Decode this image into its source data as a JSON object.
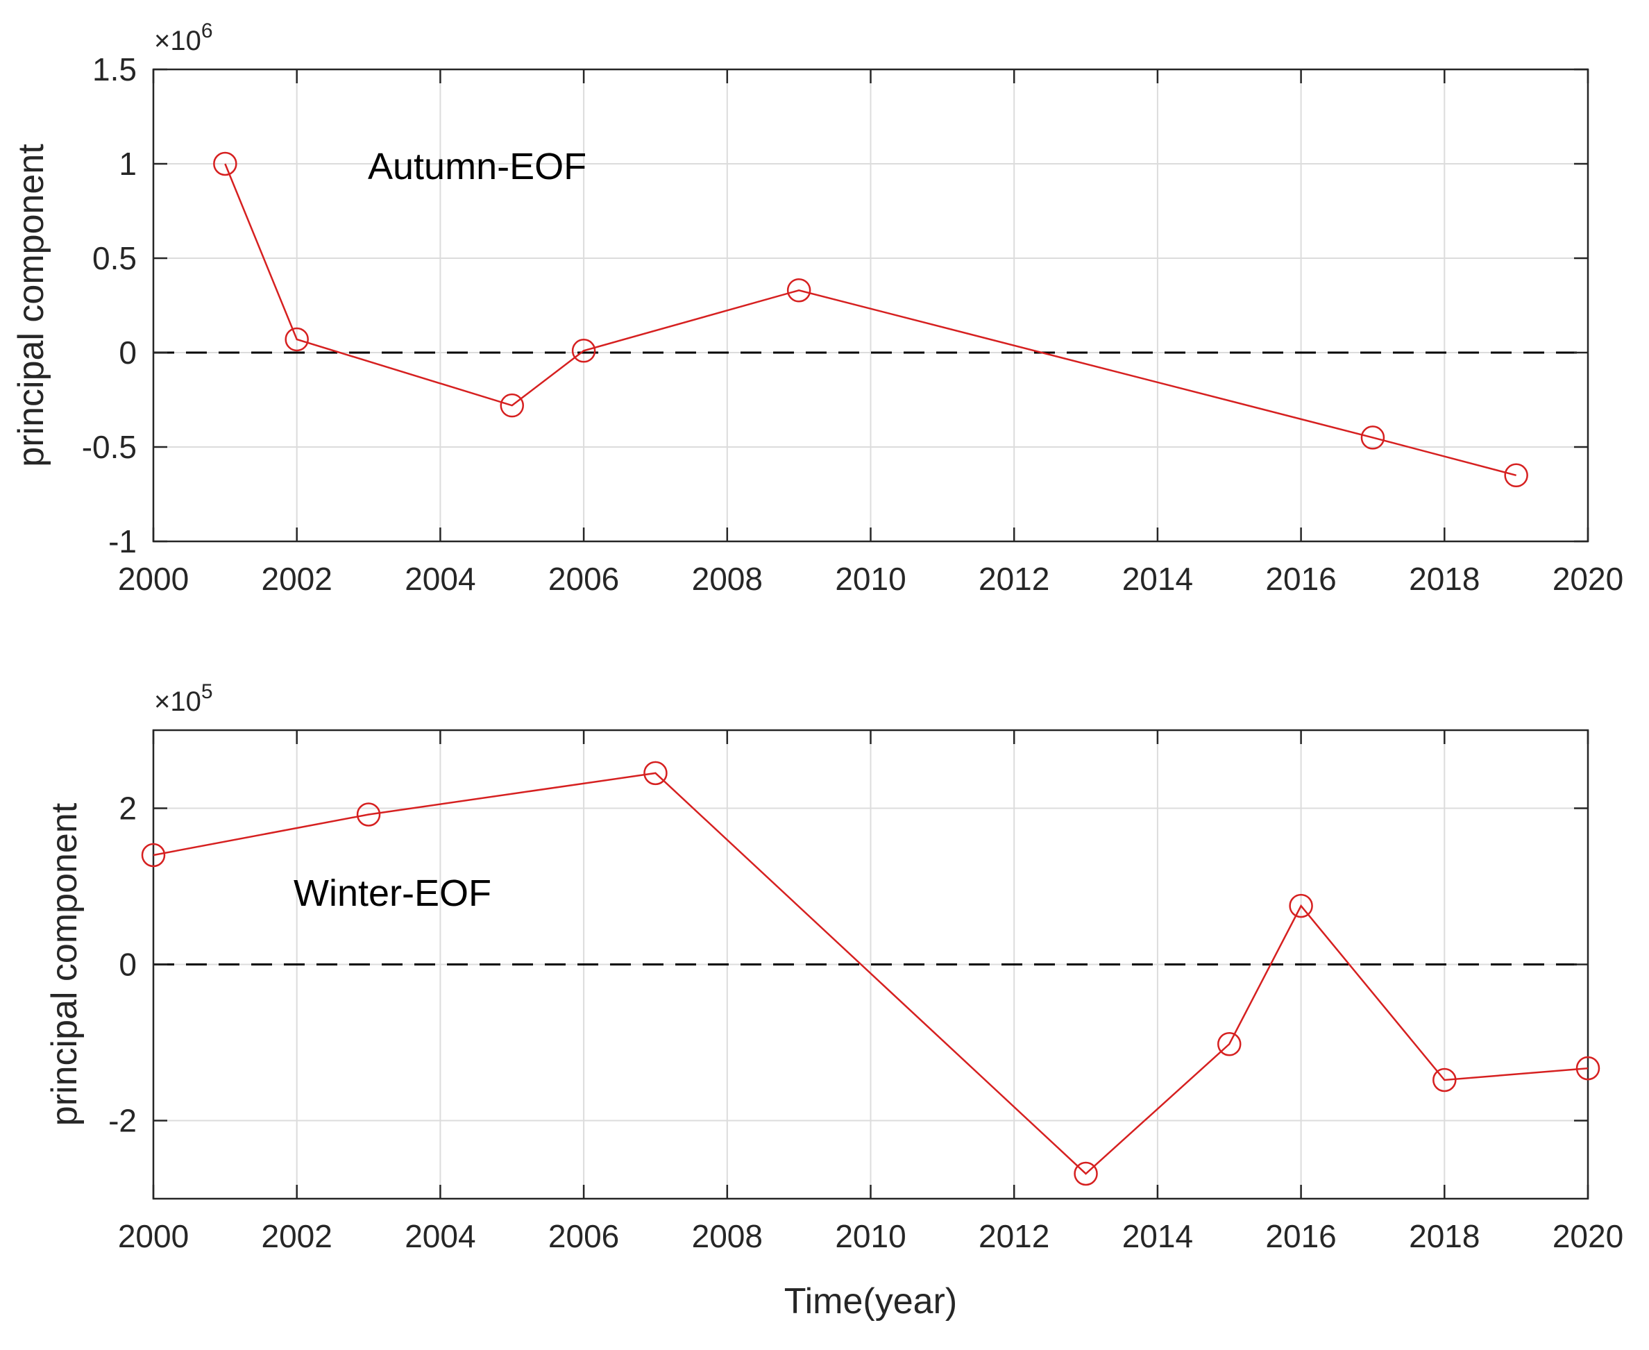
{
  "colors": {
    "series": "#d62020",
    "zero_line": "#000000",
    "grid": "#dcdcdc",
    "axes": "#262626"
  },
  "chart_data": [
    {
      "type": "line",
      "annotation": "Autumn-EOF",
      "ylabel": "principal component",
      "xlabel": "",
      "exponent_label": "×10",
      "exponent_power": "6",
      "xlim": [
        2000,
        2020
      ],
      "ylim": [
        -1,
        1.5
      ],
      "xticks": [
        2000,
        2002,
        2004,
        2006,
        2008,
        2010,
        2012,
        2014,
        2016,
        2018,
        2020
      ],
      "xtick_labels": [
        "2000",
        "2002",
        "2004",
        "2006",
        "2008",
        "2010",
        "2012",
        "2014",
        "2016",
        "2018",
        "2020"
      ],
      "yticks": [
        -1,
        -0.5,
        0,
        0.5,
        1,
        1.5
      ],
      "ytick_labels": [
        "-1",
        "-0.5",
        "0",
        "0.5",
        "1",
        "1.5"
      ],
      "grid": true,
      "zero_line": "dashed",
      "series": [
        {
          "name": "Autumn-EOF",
          "marker": "circle",
          "x": [
            2001,
            2002,
            2005,
            2006,
            2009,
            2017,
            2019
          ],
          "values": [
            1.0,
            0.07,
            -0.28,
            0.01,
            0.33,
            -0.45,
            -0.65
          ]
        }
      ]
    },
    {
      "type": "line",
      "annotation": "Winter-EOF",
      "ylabel": "principal component",
      "xlabel": "Time(year)",
      "exponent_label": "×10",
      "exponent_power": "5",
      "xlim": [
        2000,
        2020
      ],
      "ylim": [
        -3,
        3
      ],
      "xticks": [
        2000,
        2002,
        2004,
        2006,
        2008,
        2010,
        2012,
        2014,
        2016,
        2018,
        2020
      ],
      "xtick_labels": [
        "2000",
        "2002",
        "2004",
        "2006",
        "2008",
        "2010",
        "2012",
        "2014",
        "2016",
        "2018",
        "2020"
      ],
      "yticks": [
        -2,
        0,
        2
      ],
      "ytick_labels": [
        "-2",
        "0",
        "2"
      ],
      "grid": true,
      "zero_line": "dashed",
      "series": [
        {
          "name": "Winter-EOF",
          "marker": "circle",
          "x": [
            2000,
            2003,
            2007,
            2013,
            2015,
            2016,
            2018,
            2020
          ],
          "values": [
            1.4,
            1.92,
            2.45,
            -2.68,
            -1.02,
            0.75,
            -1.48,
            -1.33
          ]
        }
      ]
    }
  ]
}
